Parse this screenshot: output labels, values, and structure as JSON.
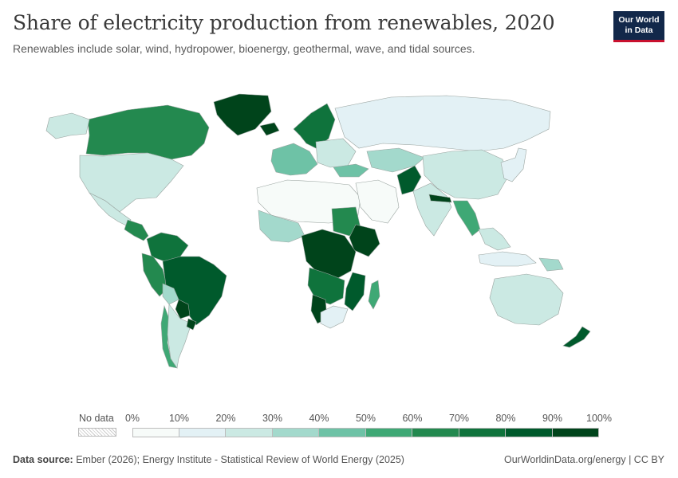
{
  "header": {
    "title": "Share of electricity production from renewables, 2020",
    "subtitle": "Renewables include solar, wind, hydropower, bioenergy, geothermal, wave, and tidal sources.",
    "logo_line1": "Our World",
    "logo_line2": "in Data"
  },
  "legend": {
    "nodata_label": "No data",
    "ticks": [
      "0%",
      "10%",
      "20%",
      "30%",
      "40%",
      "50%",
      "60%",
      "70%",
      "80%",
      "90%",
      "100%"
    ],
    "bins": [
      {
        "color": "#f7fbf9"
      },
      {
        "color": "#e3f1f5"
      },
      {
        "color": "#cbe9e3"
      },
      {
        "color": "#a3d9cc"
      },
      {
        "color": "#6ec2a6"
      },
      {
        "color": "#3fa875"
      },
      {
        "color": "#23894f"
      },
      {
        "color": "#0f733c"
      },
      {
        "color": "#005a2c"
      },
      {
        "color": "#00441b"
      }
    ]
  },
  "footer": {
    "source_label": "Data source:",
    "source_text": "Ember (2026); Energy Institute - Statistical Review of World Energy (2025)",
    "credit": "OurWorldinData.org/energy | CC BY"
  },
  "map_data": {
    "year": "2020",
    "regions": [
      {
        "name": "greenland",
        "bin": 9
      },
      {
        "name": "canada",
        "bin": 6
      },
      {
        "name": "alaska",
        "bin": 2
      },
      {
        "name": "usa",
        "bin": 2
      },
      {
        "name": "mexico",
        "bin": 2
      },
      {
        "name": "central-america",
        "bin": 6
      },
      {
        "name": "colombia-venezuela",
        "bin": 7
      },
      {
        "name": "peru-ecuador",
        "bin": 6
      },
      {
        "name": "brazil",
        "bin": 8
      },
      {
        "name": "bolivia",
        "bin": 3
      },
      {
        "name": "paraguay",
        "bin": 9
      },
      {
        "name": "chile",
        "bin": 5
      },
      {
        "name": "argentina",
        "bin": 2
      },
      {
        "name": "uruguay",
        "bin": 9
      },
      {
        "name": "iceland",
        "bin": 9
      },
      {
        "name": "scandinavia",
        "bin": 7
      },
      {
        "name": "western-europe",
        "bin": 4
      },
      {
        "name": "eastern-europe",
        "bin": 2
      },
      {
        "name": "russia",
        "bin": 1
      },
      {
        "name": "turkey",
        "bin": 4
      },
      {
        "name": "north-africa",
        "bin": 0
      },
      {
        "name": "west-africa",
        "bin": 3
      },
      {
        "name": "sudan",
        "bin": 6
      },
      {
        "name": "ethiopia",
        "bin": 9
      },
      {
        "name": "central-africa",
        "bin": 9
      },
      {
        "name": "angola-zambia",
        "bin": 7
      },
      {
        "name": "mozambique",
        "bin": 8
      },
      {
        "name": "namibia",
        "bin": 9
      },
      {
        "name": "south-africa",
        "bin": 1
      },
      {
        "name": "madagascar",
        "bin": 5
      },
      {
        "name": "middle-east",
        "bin": 0
      },
      {
        "name": "afghanistan",
        "bin": 8
      },
      {
        "name": "central-asia",
        "bin": 3
      },
      {
        "name": "india",
        "bin": 2
      },
      {
        "name": "nepal",
        "bin": 9
      },
      {
        "name": "myanmar-laos",
        "bin": 5
      },
      {
        "name": "china",
        "bin": 2
      },
      {
        "name": "korea-japan",
        "bin": 1
      },
      {
        "name": "southeast-asia",
        "bin": 2
      },
      {
        "name": "indonesia",
        "bin": 1
      },
      {
        "name": "papua",
        "bin": 3
      },
      {
        "name": "australia",
        "bin": 2
      },
      {
        "name": "new-zealand",
        "bin": 8
      }
    ]
  }
}
